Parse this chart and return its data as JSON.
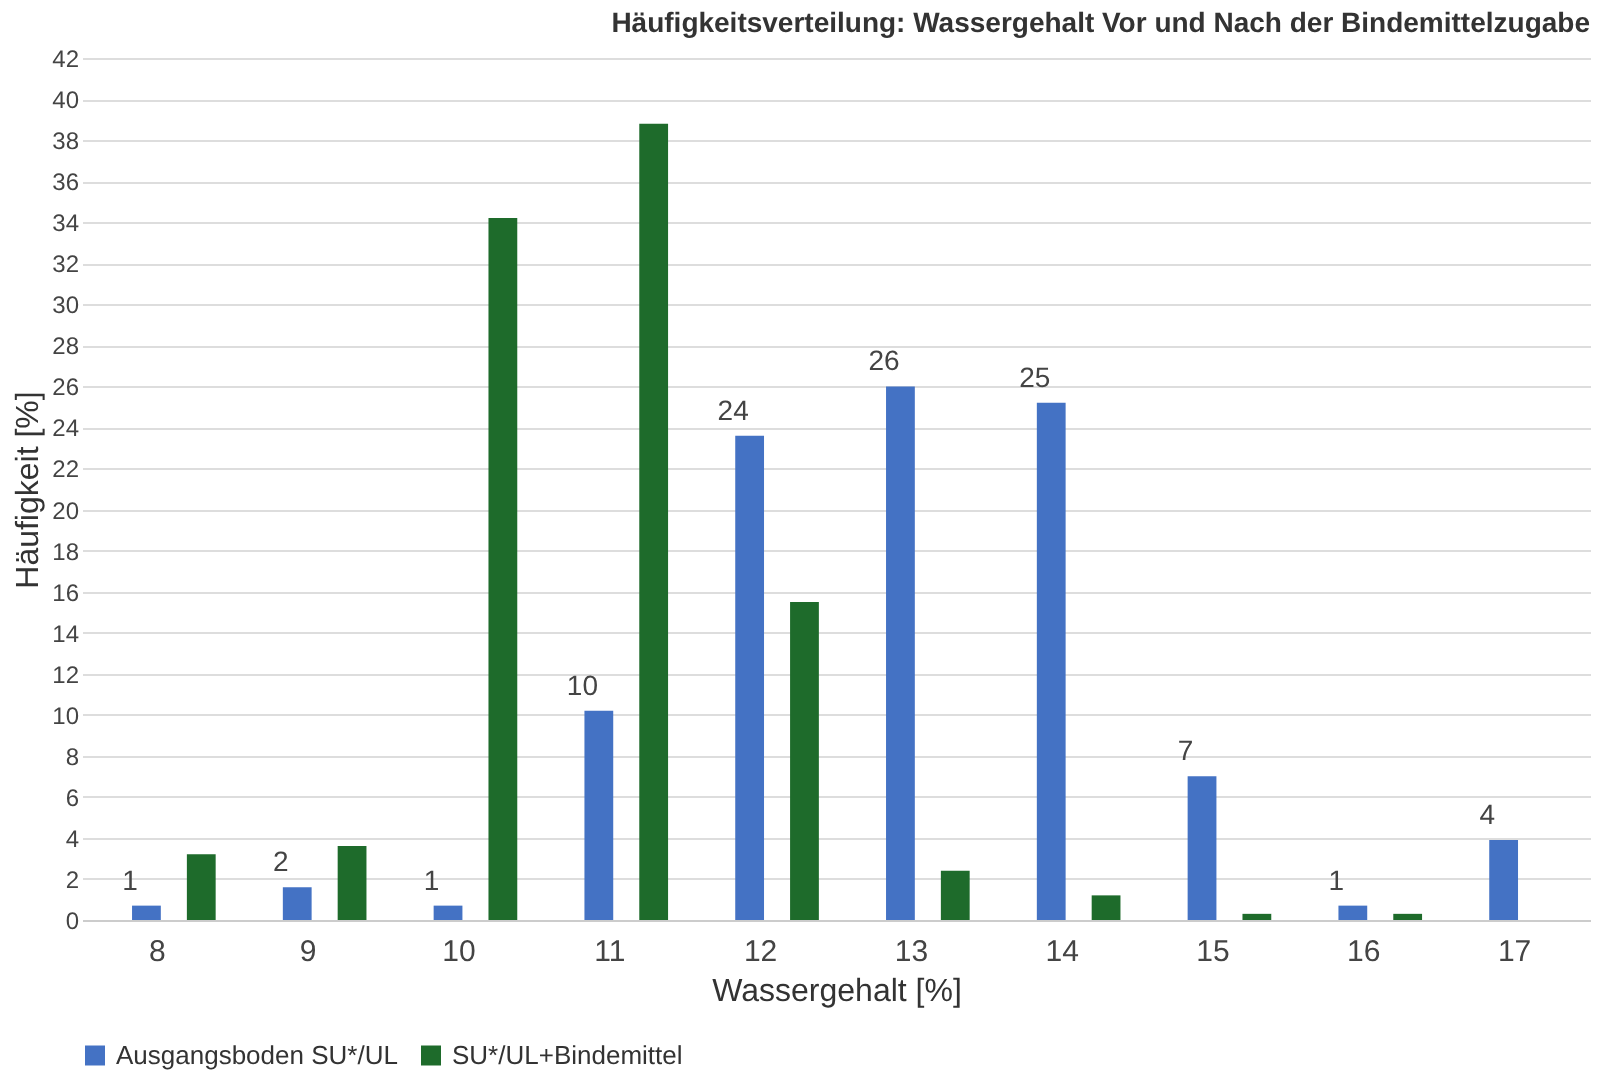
{
  "chart_data": {
    "type": "bar",
    "title": "Häufigkeitsverteilung: Wassergehalt Vor und Nach der Bindemittelzugabe",
    "xlabel": "Wassergehalt [%]",
    "ylabel": "Häufigkeit [%]",
    "categories": [
      "8",
      "9",
      "10",
      "11",
      "12",
      "13",
      "14",
      "15",
      "16",
      "17"
    ],
    "series": [
      {
        "name": "Ausgangsboden SU*/UL",
        "color": "#4472c4",
        "values": [
          0.7,
          1.6,
          0.7,
          10.2,
          23.6,
          26,
          25.2,
          7.0,
          0.7,
          3.9
        ],
        "value_labels": [
          "1",
          "2",
          "1",
          "10",
          "24",
          "26",
          "25",
          "7",
          "1",
          "4"
        ]
      },
      {
        "name": "SU*/UL+Bindemittel",
        "color": "#1e6b2b",
        "values": [
          3.2,
          3.6,
          34.2,
          38.8,
          15.5,
          2.4,
          1.2,
          0.3,
          0.3,
          null
        ]
      }
    ],
    "ylim": [
      0,
      42
    ],
    "yticks": [
      0,
      2,
      4,
      6,
      8,
      10,
      12,
      14,
      16,
      18,
      20,
      22,
      24,
      26,
      28,
      30,
      32,
      34,
      36,
      38,
      40,
      42
    ],
    "grid": "y",
    "legend": "bottom"
  }
}
